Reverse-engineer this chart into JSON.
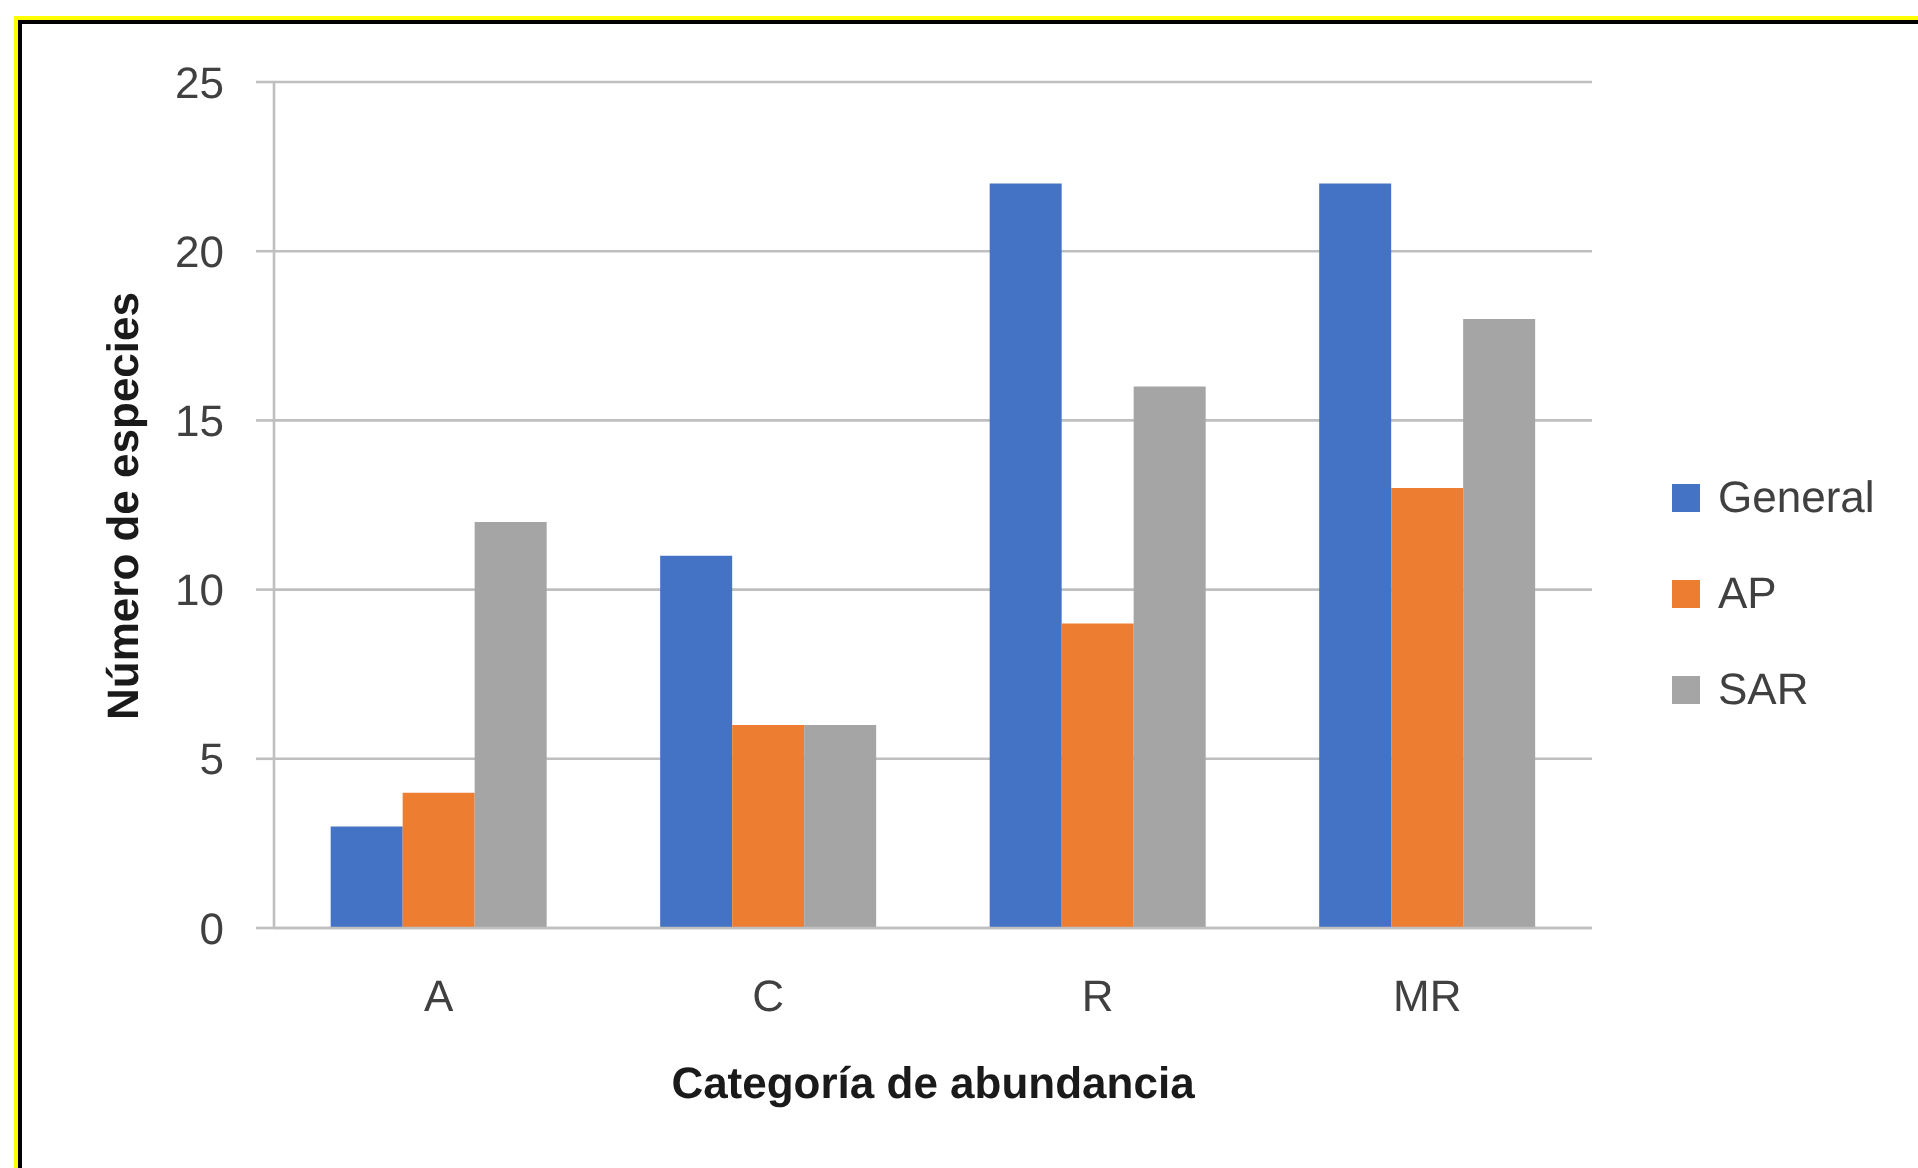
{
  "chart_data": {
    "type": "bar",
    "xlabel": "Categoría de abundancia",
    "ylabel": "Número de especies",
    "categories": [
      "A",
      "C",
      "R",
      "MR"
    ],
    "series": [
      {
        "name": "General",
        "color": "#4472c4",
        "values": [
          3,
          11,
          22,
          22
        ]
      },
      {
        "name": "AP",
        "color": "#ed7d31",
        "values": [
          4,
          6,
          9,
          13
        ]
      },
      {
        "name": "SAR",
        "color": "#a5a5a5",
        "values": [
          12,
          6,
          16,
          18
        ]
      }
    ],
    "ylim": [
      0,
      25
    ],
    "yticks": [
      0,
      5,
      10,
      15,
      20,
      25
    ],
    "grid": "y",
    "legend": "right"
  }
}
